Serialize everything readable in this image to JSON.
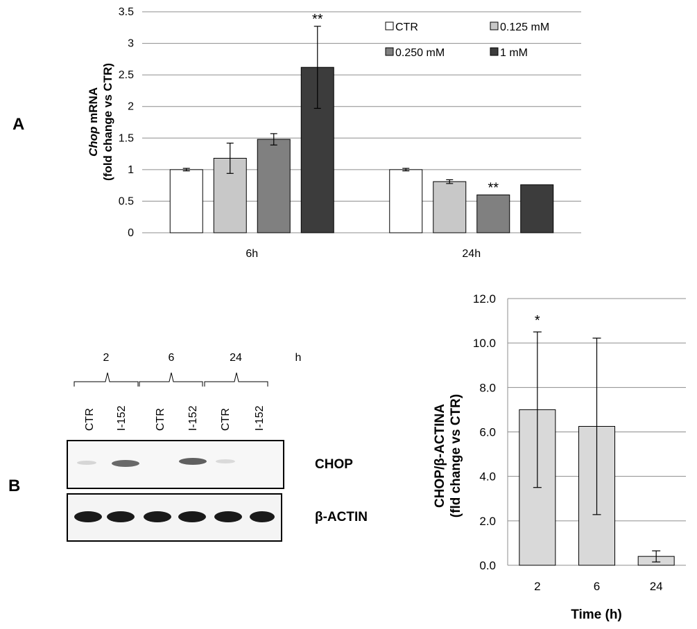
{
  "colors": {
    "CTR": "#ffffff",
    "0.125 mM": "#c8c8c8",
    "0.250 mM": "#808080",
    "1 mM": "#3c3c3c",
    "panelB": "#d9d9d9"
  },
  "chart_data": [
    {
      "id": "A",
      "panel_label": "A",
      "type": "bar",
      "categories": [
        "6h",
        "24h"
      ],
      "series": [
        {
          "name": "CTR",
          "values": [
            1.0,
            1.0
          ],
          "errors": [
            0.02,
            0.02
          ]
        },
        {
          "name": "0.125 mM",
          "values": [
            1.18,
            0.81
          ],
          "errors": [
            0.24,
            0.03
          ]
        },
        {
          "name": "0.250 mM",
          "values": [
            1.48,
            0.6
          ],
          "errors": [
            0.09,
            0.0
          ]
        },
        {
          "name": "1 mM",
          "values": [
            2.62,
            0.76
          ],
          "errors": [
            0.65,
            0.0
          ]
        }
      ],
      "ylabel_italic": "Chop",
      "ylabel_rest": " mRNA",
      "ylabel_line2": "(fold change vs CTR)",
      "ylim": [
        0,
        3.5
      ],
      "yticks": [
        "0",
        "0.5",
        "1",
        "1.5",
        "2",
        "2.5",
        "3",
        "3.5"
      ],
      "grid": true,
      "legend_position": "top-right",
      "annotations": [
        {
          "text": "**",
          "category": "6h",
          "series": "1 mM"
        },
        {
          "text": "**",
          "category": "24h",
          "series": "0.250 mM"
        }
      ]
    },
    {
      "id": "B",
      "panel_label": "B",
      "type": "bar",
      "categories": [
        "2",
        "6",
        "24"
      ],
      "values": [
        7.0,
        6.25,
        0.4
      ],
      "errors": [
        3.5,
        3.97,
        0.25
      ],
      "xlabel": "Time (h)",
      "ylabel_line1": "CHOP/β-ACTINA",
      "ylabel_line2": "(fld change vs CTR)",
      "ylim": [
        0,
        12
      ],
      "yticks": [
        "0.0",
        "2.0",
        "4.0",
        "6.0",
        "8.0",
        "10.0",
        "12.0"
      ],
      "grid": true,
      "annotations": [
        {
          "text": "*",
          "category": "2"
        }
      ]
    }
  ],
  "blot": {
    "time_groups": [
      "2",
      "6",
      "24"
    ],
    "unit": "h",
    "lanes": [
      "CTR",
      "I-152",
      "CTR",
      "I-152",
      "CTR",
      "I-152"
    ],
    "bands": [
      "CHOP",
      "β-ACTIN"
    ]
  }
}
